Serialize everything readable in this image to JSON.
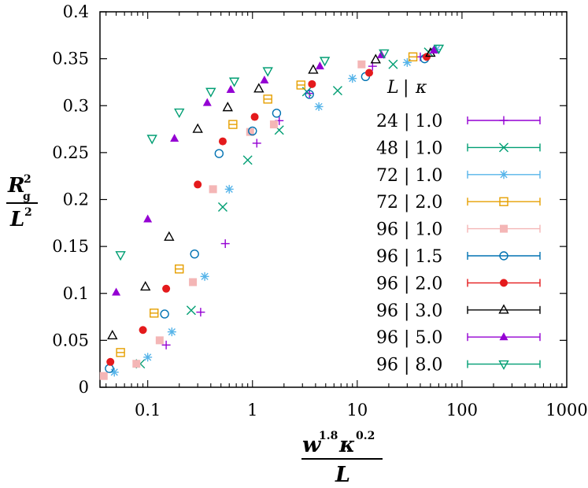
{
  "chart_data": {
    "type": "scatter",
    "title": "",
    "xscale": "log",
    "xlim": [
      0.035,
      1000
    ],
    "ylim": [
      0,
      0.4
    ],
    "x_ticks": [
      {
        "value": 0.1,
        "label": "0.1"
      },
      {
        "value": 1,
        "label": "1"
      },
      {
        "value": 10,
        "label": "10"
      },
      {
        "value": 100,
        "label": "100"
      },
      {
        "value": 1000,
        "label": "1000"
      }
    ],
    "y_ticks": [
      {
        "value": 0,
        "label": "0"
      },
      {
        "value": 0.05,
        "label": "0.05"
      },
      {
        "value": 0.1,
        "label": "0.1"
      },
      {
        "value": 0.15,
        "label": "0.15"
      },
      {
        "value": 0.2,
        "label": "0.2"
      },
      {
        "value": 0.25,
        "label": "0.25"
      },
      {
        "value": 0.3,
        "label": "0.3"
      },
      {
        "value": 0.35,
        "label": "0.35"
      },
      {
        "value": 0.4,
        "label": "0.4"
      }
    ],
    "xlabel": {
      "w": "w",
      "w_exp": "1.8",
      "k": "κ",
      "k_exp": "0.2",
      "denominator": "L"
    },
    "ylabel": {
      "r": "R",
      "r_sub": "g",
      "r_exp": "2",
      "denominator": "L",
      "d_exp": "2"
    },
    "legend": {
      "position": "right",
      "header_l": "L",
      "header_sep": "|",
      "header_k": "κ"
    },
    "series": [
      {
        "name": "24 | 1.0",
        "L": "24",
        "kappa": "1.0",
        "color": "#9400d3",
        "marker": "plus",
        "points": [
          [
            0.15,
            0.045
          ],
          [
            0.32,
            0.08
          ],
          [
            0.55,
            0.153
          ],
          [
            1.1,
            0.26
          ],
          [
            1.8,
            0.284
          ],
          [
            3.5,
            0.313
          ],
          [
            14,
            0.342
          ],
          [
            40,
            0.352
          ]
        ]
      },
      {
        "name": "48 | 1.0",
        "L": "48",
        "kappa": "1.0",
        "color": "#009e73",
        "marker": "cross",
        "points": [
          [
            0.085,
            0.025
          ],
          [
            0.26,
            0.082
          ],
          [
            0.52,
            0.192
          ],
          [
            0.9,
            0.242
          ],
          [
            1.8,
            0.274
          ],
          [
            3.3,
            0.315
          ],
          [
            6.5,
            0.316
          ],
          [
            22,
            0.344
          ],
          [
            48,
            0.357
          ]
        ]
      },
      {
        "name": "72 | 1.0",
        "L": "72",
        "kappa": "1.0",
        "color": "#56b4e9",
        "marker": "star",
        "points": [
          [
            0.048,
            0.016
          ],
          [
            0.1,
            0.032
          ],
          [
            0.17,
            0.059
          ],
          [
            0.35,
            0.118
          ],
          [
            0.6,
            0.211
          ],
          [
            4.3,
            0.299
          ],
          [
            9,
            0.329
          ],
          [
            30,
            0.346
          ],
          [
            57,
            0.36
          ]
        ]
      },
      {
        "name": "72 | 2.0",
        "L": "72",
        "kappa": "2.0",
        "color": "#e69f00",
        "marker": "box",
        "points": [
          [
            0.055,
            0.037
          ],
          [
            0.115,
            0.079
          ],
          [
            0.2,
            0.126
          ],
          [
            0.65,
            0.28
          ],
          [
            1.4,
            0.307
          ],
          [
            2.9,
            0.322
          ],
          [
            34,
            0.352
          ]
        ]
      },
      {
        "name": "96 | 1.0",
        "L": "96",
        "kappa": "1.0",
        "color": "#f4b6b6",
        "marker": "square",
        "points": [
          [
            0.038,
            0.012
          ],
          [
            0.078,
            0.025
          ],
          [
            0.13,
            0.05
          ],
          [
            0.27,
            0.112
          ],
          [
            0.42,
            0.211
          ],
          [
            0.95,
            0.272
          ],
          [
            1.6,
            0.28
          ],
          [
            11,
            0.344
          ]
        ]
      },
      {
        "name": "96 | 1.5",
        "L": "96",
        "kappa": "1.5",
        "color": "#0072b2",
        "marker": "circle",
        "points": [
          [
            0.043,
            0.02
          ],
          [
            0.145,
            0.078
          ],
          [
            0.28,
            0.142
          ],
          [
            0.48,
            0.249
          ],
          [
            1,
            0.273
          ],
          [
            1.7,
            0.292
          ],
          [
            3.5,
            0.312
          ],
          [
            12,
            0.331
          ],
          [
            44,
            0.35
          ]
        ]
      },
      {
        "name": "96 | 2.0",
        "L": "96",
        "kappa": "2.0",
        "color": "#e41a1c",
        "marker": "dot",
        "points": [
          [
            0.044,
            0.027
          ],
          [
            0.09,
            0.061
          ],
          [
            0.15,
            0.105
          ],
          [
            0.3,
            0.216
          ],
          [
            0.52,
            0.262
          ],
          [
            1.05,
            0.288
          ],
          [
            3.7,
            0.323
          ],
          [
            13,
            0.335
          ],
          [
            46,
            0.352
          ]
        ]
      },
      {
        "name": "96 | 3.0",
        "L": "96",
        "kappa": "3.0",
        "color": "#000000",
        "marker": "triangle",
        "points": [
          [
            0.046,
            0.055
          ],
          [
            0.095,
            0.107
          ],
          [
            0.16,
            0.16
          ],
          [
            0.3,
            0.275
          ],
          [
            0.58,
            0.298
          ],
          [
            1.15,
            0.318
          ],
          [
            3.8,
            0.338
          ],
          [
            15,
            0.349
          ],
          [
            50,
            0.356
          ]
        ]
      },
      {
        "name": "96 | 5.0",
        "L": "96",
        "kappa": "5.0",
        "color": "#9400d3",
        "marker": "triangle-filled",
        "points": [
          [
            0.05,
            0.101
          ],
          [
            0.1,
            0.179
          ],
          [
            0.18,
            0.265
          ],
          [
            0.37,
            0.303
          ],
          [
            0.62,
            0.317
          ],
          [
            1.3,
            0.327
          ],
          [
            4.4,
            0.342
          ],
          [
            17,
            0.354
          ],
          [
            54,
            0.359
          ]
        ]
      },
      {
        "name": "96 | 8.0",
        "L": "96",
        "kappa": "8.0",
        "color": "#009e73",
        "marker": "down-triangle",
        "points": [
          [
            0.055,
            0.141
          ],
          [
            0.11,
            0.265
          ],
          [
            0.2,
            0.293
          ],
          [
            0.4,
            0.315
          ],
          [
            0.67,
            0.326
          ],
          [
            1.4,
            0.337
          ],
          [
            4.9,
            0.348
          ],
          [
            18,
            0.356
          ],
          [
            60,
            0.361
          ]
        ]
      }
    ]
  }
}
